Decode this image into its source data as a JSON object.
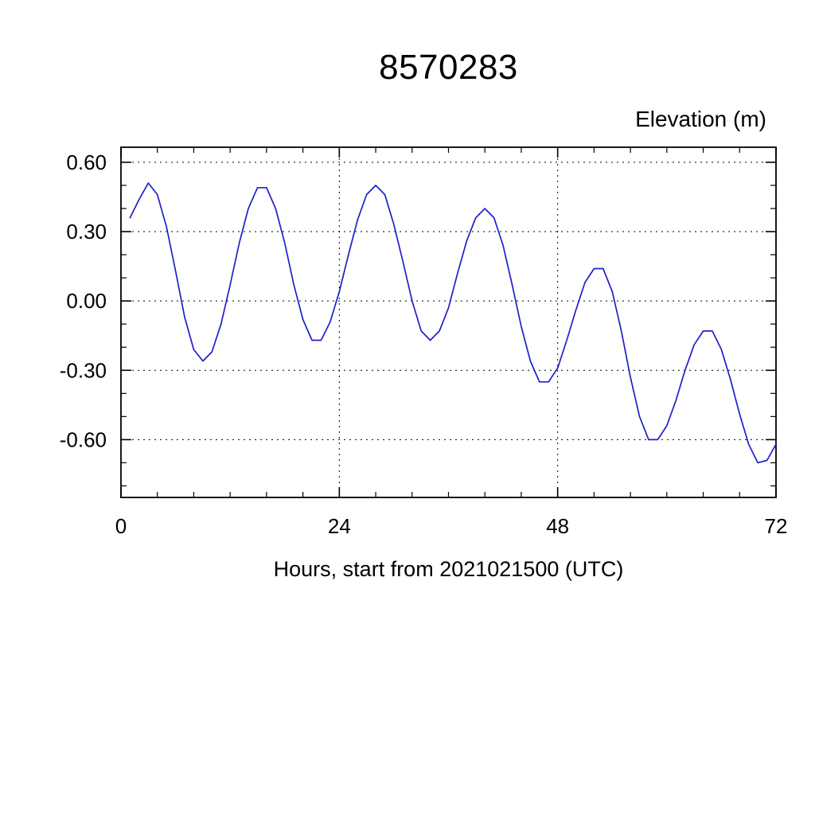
{
  "header": {
    "title": "8570283",
    "right_axis_label": "Elevation (m)",
    "x_axis_label": "Hours, start from 2021021500 (UTC)"
  },
  "chart_data": {
    "type": "line",
    "title": "8570283",
    "ylabel": "Elevation (m)",
    "xlabel": "Hours, start from 2021021500 (UTC)",
    "xlim": [
      0,
      72
    ],
    "ylim": [
      -0.85,
      0.665
    ],
    "x_ticks": [
      0,
      24,
      48,
      72
    ],
    "x_tick_labels": [
      "0",
      "24",
      "48",
      "72"
    ],
    "y_ticks": [
      0.6,
      0.3,
      0.0,
      -0.3,
      -0.6
    ],
    "y_tick_labels": [
      "0.60",
      "0.30",
      "0.00",
      "-0.30",
      "-0.60"
    ],
    "x_minor_step": 4,
    "y_minor_step": 0.1,
    "grid": true,
    "grid_style": "dotted",
    "grid_x_lines": [
      24,
      48
    ],
    "line_color": "#2020c8",
    "frame_color": "#000000",
    "series": [
      {
        "name": "elevation",
        "x": [
          1,
          2,
          3,
          4,
          5,
          6,
          7,
          8,
          9,
          10,
          11,
          12,
          13,
          14,
          15,
          16,
          17,
          18,
          19,
          20,
          21,
          22,
          23,
          24,
          25,
          26,
          27,
          28,
          29,
          30,
          31,
          32,
          33,
          34,
          35,
          36,
          37,
          38,
          39,
          40,
          41,
          42,
          43,
          44,
          45,
          46,
          47,
          48,
          49,
          50,
          51,
          52,
          53,
          54,
          55,
          56,
          57,
          58,
          59,
          60,
          61,
          62,
          63,
          64,
          65,
          66,
          67,
          68,
          69,
          70,
          71,
          72
        ],
        "y": [
          0.36,
          0.44,
          0.51,
          0.46,
          0.32,
          0.13,
          -0.07,
          -0.21,
          -0.26,
          -0.22,
          -0.1,
          0.07,
          0.25,
          0.4,
          0.49,
          0.49,
          0.4,
          0.25,
          0.07,
          -0.08,
          -0.17,
          -0.17,
          -0.09,
          0.04,
          0.2,
          0.35,
          0.46,
          0.5,
          0.46,
          0.33,
          0.17,
          0.0,
          -0.13,
          -0.17,
          -0.13,
          -0.03,
          0.12,
          0.26,
          0.36,
          0.4,
          0.36,
          0.24,
          0.07,
          -0.11,
          -0.26,
          -0.35,
          -0.35,
          -0.29,
          -0.17,
          -0.04,
          0.08,
          0.14,
          0.14,
          0.04,
          -0.13,
          -0.33,
          -0.5,
          -0.6,
          -0.6,
          -0.54,
          -0.43,
          -0.3,
          -0.19,
          -0.13,
          -0.13,
          -0.21,
          -0.34,
          -0.49,
          -0.62,
          -0.7,
          -0.69,
          -0.62
        ]
      }
    ]
  }
}
